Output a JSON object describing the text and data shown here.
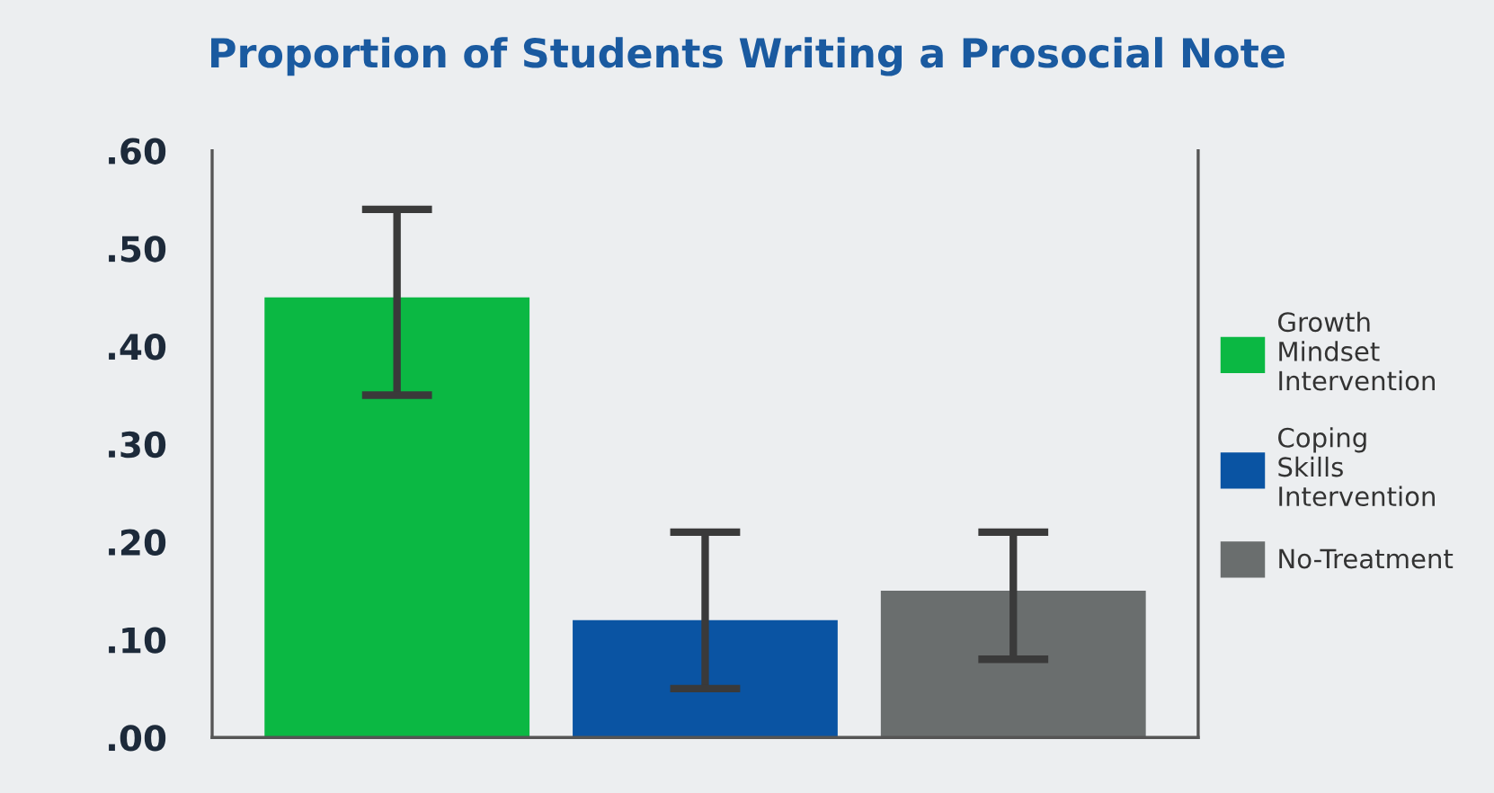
{
  "chart_data": {
    "type": "bar",
    "title": "Proportion of Students Writing a Prosocial Note",
    "categories": [
      null,
      null,
      null
    ],
    "series": [
      {
        "name": "Growth Mindset Intervention",
        "color": "#0bb843",
        "values": [
          0.45,
          null,
          null
        ],
        "errors": [
          [
            0.35,
            0.54
          ],
          null,
          null
        ]
      },
      {
        "name": "Coping Skills Intervention",
        "color": "#0a54a3",
        "values": [
          null,
          0.12,
          null
        ],
        "errors": [
          null,
          [
            0.05,
            0.21
          ],
          null
        ]
      },
      {
        "name": "No-Treatment",
        "color": "#6a6e6e",
        "values": [
          null,
          null,
          0.15
        ],
        "errors": [
          null,
          null,
          [
            0.08,
            0.21
          ]
        ]
      }
    ],
    "ylim": [
      0,
      0.6
    ],
    "yticks": [
      {
        "value": 0,
        "label": ".00"
      },
      {
        "value": 0.1,
        "label": ".10"
      },
      {
        "value": 0.2,
        "label": ".20"
      },
      {
        "value": 0.3,
        "label": ".30"
      },
      {
        "value": 0.4,
        "label": ".40"
      },
      {
        "value": 0.5,
        "label": ".50"
      },
      {
        "value": 0.6,
        "label": ".60"
      }
    ],
    "grid": false,
    "legend": "right"
  }
}
